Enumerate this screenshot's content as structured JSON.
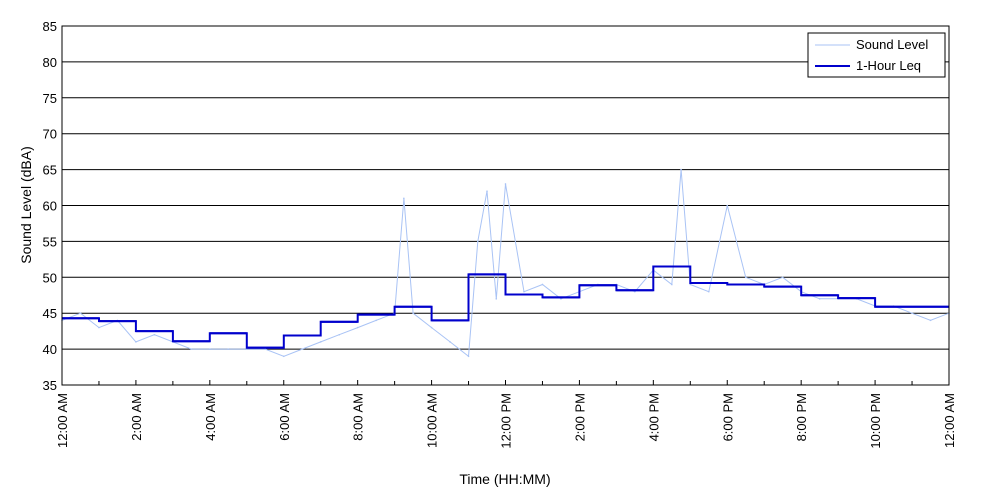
{
  "chart_data": {
    "type": "line",
    "title": "",
    "xlabel": "Time (HH:MM)",
    "ylabel": "Sound Level (dBA)",
    "ylim": [
      35,
      85
    ],
    "yticks": [
      35,
      40,
      45,
      50,
      55,
      60,
      65,
      70,
      75,
      80,
      85
    ],
    "xlim_hours": [
      0,
      24
    ],
    "xticks": [
      {
        "hour": 0,
        "label": "12:00 AM"
      },
      {
        "hour": 2,
        "label": "2:00 AM"
      },
      {
        "hour": 4,
        "label": "4:00 AM"
      },
      {
        "hour": 6,
        "label": "6:00 AM"
      },
      {
        "hour": 8,
        "label": "8:00 AM"
      },
      {
        "hour": 10,
        "label": "10:00 AM"
      },
      {
        "hour": 12,
        "label": "12:00 PM"
      },
      {
        "hour": 14,
        "label": "2:00 PM"
      },
      {
        "hour": 16,
        "label": "4:00 PM"
      },
      {
        "hour": 18,
        "label": "6:00 PM"
      },
      {
        "hour": 20,
        "label": "8:00 PM"
      },
      {
        "hour": 22,
        "label": "10:00 PM"
      },
      {
        "hour": 24,
        "label": "12:00 AM"
      }
    ],
    "grid": "horizontal",
    "legend_position": "top-right",
    "series": [
      {
        "name": "Sound Level",
        "color": "#a9c3f5",
        "style": "thin-line",
        "hours": [
          0,
          0.5,
          1,
          1.5,
          2,
          2.5,
          3,
          3.5,
          4,
          4.5,
          5,
          5.5,
          6,
          6.5,
          7,
          7.5,
          8,
          8.5,
          9,
          9.25,
          9.5,
          10,
          10.5,
          11,
          11.25,
          11.5,
          11.75,
          12,
          12.5,
          13,
          13.5,
          14,
          14.5,
          15,
          15.5,
          16,
          16.5,
          16.75,
          17,
          17.5,
          18,
          18.5,
          19,
          19.5,
          20,
          20.5,
          21,
          21.5,
          22,
          22.5,
          23,
          23.5,
          24
        ],
        "values": [
          44,
          45,
          43,
          44,
          41,
          42,
          41,
          40,
          40,
          40,
          40,
          40,
          39,
          40,
          41,
          42,
          43,
          44,
          45,
          61,
          45,
          43,
          41,
          39,
          55,
          62,
          47,
          63,
          48,
          49,
          47,
          48,
          49,
          49,
          48,
          51,
          49,
          65,
          49,
          48,
          60,
          50,
          49,
          50,
          48,
          47,
          47,
          47,
          46,
          46,
          45,
          44,
          45
        ]
      },
      {
        "name": "1-Hour Leq",
        "color": "#0000cc",
        "style": "step",
        "hour_starts": [
          0,
          1,
          2,
          3,
          4,
          5,
          6,
          7,
          8,
          9,
          10,
          11,
          12,
          13,
          14,
          15,
          16,
          17,
          18,
          19,
          20,
          21,
          22,
          23
        ],
        "values": [
          44.3,
          43.9,
          42.5,
          41.1,
          42.2,
          40.2,
          41.9,
          43.8,
          44.8,
          45.9,
          44.0,
          50.4,
          47.6,
          47.2,
          48.9,
          48.2,
          51.5,
          49.2,
          49.0,
          48.7,
          47.5,
          47.1,
          45.9,
          45.9
        ]
      }
    ]
  }
}
